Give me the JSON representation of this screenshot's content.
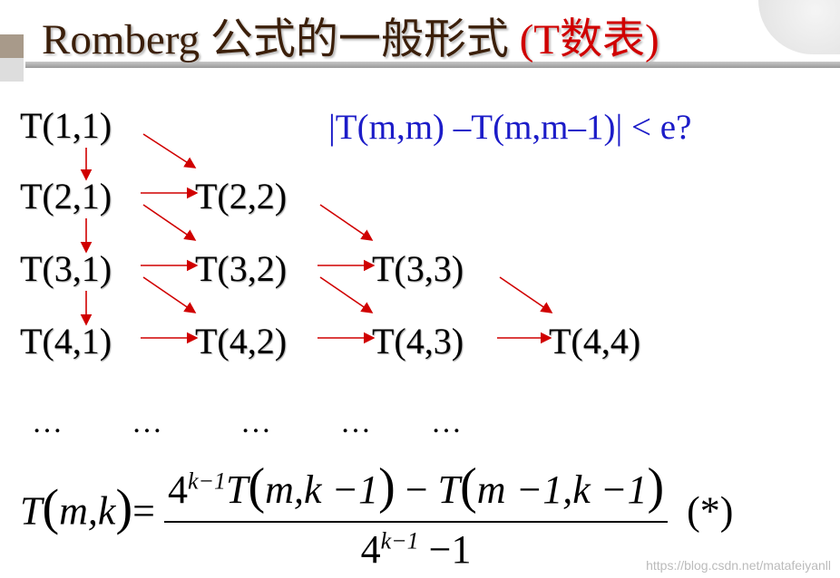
{
  "title": {
    "main": "Romberg 公式的一般形式 ",
    "highlight": "(T数表)"
  },
  "table": [
    [
      "T(1,1)"
    ],
    [
      "T(2,1)",
      "T(2,2)"
    ],
    [
      "T(3,1)",
      "T(3,2)",
      "T(3,3)"
    ],
    [
      "T(4,1)",
      "T(4,2)",
      "T(4,3)",
      "T(4,4)"
    ]
  ],
  "condition": "|T(m,m) –T(m,m–1)| < e?",
  "dots": [
    "…",
    "…",
    "…",
    "…",
    "…"
  ],
  "formula": {
    "lhs_T": "T",
    "lhs_args": "m,k",
    "eq": "=",
    "num_base": "4",
    "num_exp": "k−1",
    "num_T1": "T",
    "num_args1": "m,k −1",
    "minus": " − ",
    "num_T2": "T",
    "num_args2": "m −1,k −1",
    "den_base": "4",
    "den_exp": "k−1",
    "den_rest": " −1",
    "tag": "(*)"
  },
  "watermark": "https://blog.csdn.net/matafeiyanll",
  "colors": {
    "title": "#3b1f0a",
    "highlight": "#d00000",
    "arrow": "#d00000",
    "condition": "#1c1cc8"
  }
}
